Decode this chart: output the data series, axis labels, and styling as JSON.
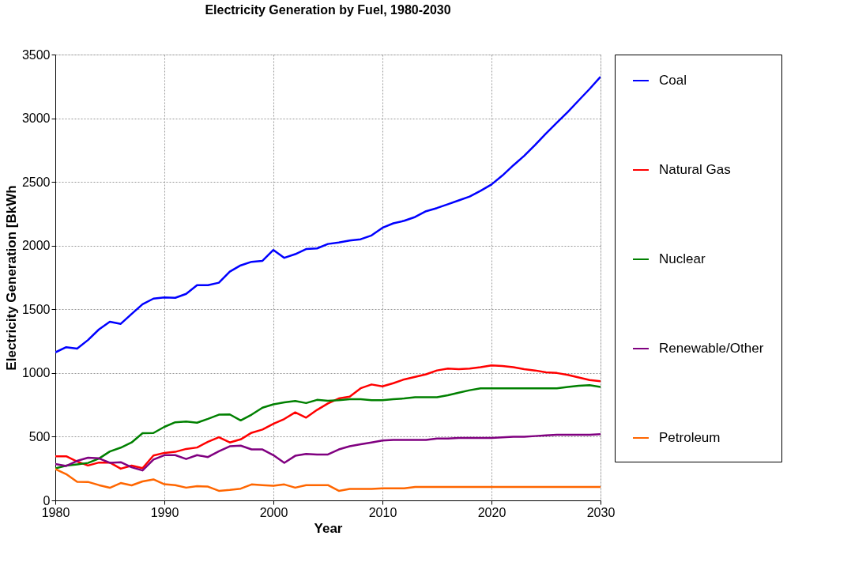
{
  "chart_data": {
    "type": "line",
    "title": "Electricity Generation by Fuel, 1980-2030",
    "xlabel": "Year",
    "ylabel": "Electricity Generation [BkWh",
    "x": [
      1980,
      1981,
      1982,
      1983,
      1984,
      1985,
      1986,
      1987,
      1988,
      1989,
      1990,
      1991,
      1992,
      1993,
      1994,
      1995,
      1996,
      1997,
      1998,
      1999,
      2000,
      2001,
      2002,
      2003,
      2004,
      2005,
      2006,
      2007,
      2008,
      2009,
      2010,
      2011,
      2012,
      2013,
      2014,
      2015,
      2016,
      2017,
      2018,
      2019,
      2020,
      2021,
      2022,
      2023,
      2024,
      2025,
      2026,
      2027,
      2028,
      2029,
      2030
    ],
    "xlim": [
      1980,
      2030
    ],
    "xticks": [
      1980,
      1990,
      2000,
      2010,
      2020,
      2030
    ],
    "ylim": [
      0,
      3500
    ],
    "yticks": [
      0,
      500,
      1000,
      1500,
      2000,
      2500,
      3000,
      3500
    ],
    "grid": true,
    "legend": "right",
    "marker": "none",
    "line_style": "solid",
    "series": [
      {
        "name": "Coal",
        "color": "#0000ff",
        "values": [
          1162,
          1203,
          1192,
          1259,
          1342,
          1402,
          1386,
          1464,
          1540,
          1584,
          1594,
          1590,
          1621,
          1690,
          1690,
          1709,
          1796,
          1845,
          1873,
          1881,
          1966,
          1904,
          1933,
          1973,
          1978,
          2013,
          2025,
          2040,
          2050,
          2080,
          2140,
          2175,
          2195,
          2225,
          2270,
          2295,
          2325,
          2355,
          2385,
          2430,
          2480,
          2550,
          2630,
          2705,
          2790,
          2880,
          2965,
          3050,
          3140,
          3230,
          3325
        ]
      },
      {
        "name": "Natural Gas",
        "color": "#ff0000",
        "values": [
          346,
          346,
          305,
          274,
          297,
          297,
          249,
          273,
          253,
          352,
          373,
          381,
          404,
          415,
          460,
          496,
          455,
          479,
          531,
          556,
          601,
          639,
          691,
          650,
          710,
          761,
          800,
          815,
          880,
          910,
          895,
          920,
          950,
          970,
          990,
          1020,
          1035,
          1030,
          1035,
          1045,
          1060,
          1055,
          1045,
          1030,
          1020,
          1005,
          1000,
          985,
          965,
          945,
          935
        ]
      },
      {
        "name": "Nuclear",
        "color": "#008000",
        "values": [
          251,
          273,
          283,
          294,
          328,
          384,
          414,
          455,
          527,
          529,
          577,
          613,
          619,
          610,
          640,
          673,
          675,
          628,
          673,
          728,
          754,
          769,
          780,
          764,
          789,
          782,
          787,
          794,
          794,
          787,
          787,
          795,
          800,
          810,
          810,
          810,
          825,
          845,
          865,
          880,
          880,
          880,
          880,
          880,
          880,
          880,
          880,
          890,
          900,
          905,
          890
        ]
      },
      {
        "name": "Renewable/Other",
        "color": "#800080",
        "values": [
          285,
          270,
          310,
          335,
          330,
          295,
          300,
          260,
          235,
          320,
          355,
          355,
          325,
          355,
          340,
          385,
          425,
          430,
          400,
          400,
          355,
          295,
          350,
          365,
          360,
          360,
          400,
          425,
          440,
          455,
          470,
          475,
          475,
          475,
          475,
          485,
          485,
          490,
          490,
          490,
          490,
          495,
          500,
          500,
          505,
          510,
          515,
          515,
          515,
          515,
          520
        ]
      },
      {
        "name": "Petroleum",
        "color": "#ff6600",
        "values": [
          246,
          206,
          146,
          145,
          120,
          99,
          136,
          118,
          149,
          165,
          127,
          120,
          100,
          112,
          108,
          75,
          82,
          92,
          125,
          120,
          115,
          125,
          100,
          120,
          120,
          120,
          75,
          90,
          90,
          90,
          95,
          95,
          95,
          105,
          105,
          105,
          105,
          105,
          105,
          105,
          105,
          105,
          105,
          105,
          105,
          105,
          105,
          105,
          105,
          105,
          105
        ]
      }
    ]
  }
}
